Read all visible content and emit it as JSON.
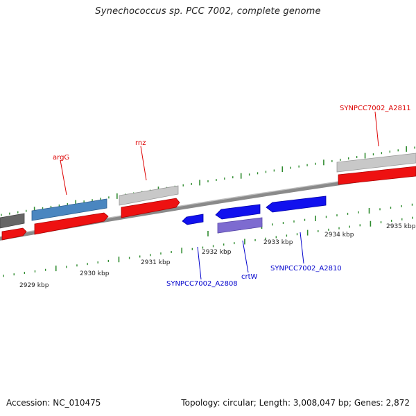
{
  "header": {
    "title": "Synechococcus sp. PCC 7002, complete genome"
  },
  "footer": {
    "accession": "Accession: NC_010475",
    "stats": "Topology: circular; Length: 3,008,047 bp; Genes: 2,872"
  },
  "colors": {
    "backbone": "#8a8a8a",
    "tick": "#2e8b2e",
    "forward_label": "#dd0000",
    "reverse_label": "#0000cc",
    "cds_red": "#ee1111",
    "cds_blue": "#1111ee",
    "cds_steelblue": "#4a86c0",
    "cds_lightgray": "#c8c8c8",
    "cds_darkgray": "#666666",
    "cds_purple": "#7d6bd0"
  },
  "axis": {
    "ticks": [
      {
        "label": "2929 kbp"
      },
      {
        "label": "2930 kbp"
      },
      {
        "label": "2931 kbp"
      },
      {
        "label": "2932 kbp"
      },
      {
        "label": "2933 kbp"
      },
      {
        "label": "2934 kbp"
      },
      {
        "label": "2935 kbp"
      }
    ]
  },
  "gene_labels": {
    "forward": [
      {
        "name": "argG"
      },
      {
        "name": "rnz"
      },
      {
        "name": "SYNPCC7002_A2811"
      }
    ],
    "reverse": [
      {
        "name": "SYNPCC7002_A2808"
      },
      {
        "name": "crtW"
      },
      {
        "name": "SYNPCC7002_A2810"
      }
    ]
  }
}
